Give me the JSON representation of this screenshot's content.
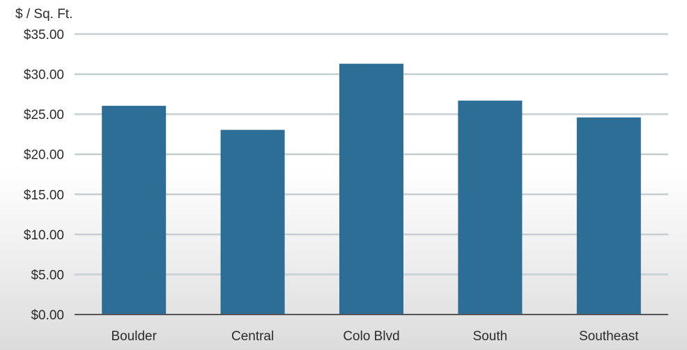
{
  "chart_data": {
    "type": "bar",
    "title": "",
    "xlabel": "",
    "ylabel": "$ / Sq. Ft.",
    "categories": [
      "Boulder",
      "Central",
      "Colo Blvd",
      "South",
      "Southeast"
    ],
    "values": [
      26.05,
      23.05,
      31.3,
      26.7,
      24.6
    ],
    "ylim": [
      0,
      35
    ],
    "yticks": [
      0,
      5,
      10,
      15,
      20,
      25,
      30,
      35
    ],
    "ytick_labels": [
      "$0.00",
      "$5.00",
      "$10.00",
      "$15.00",
      "$20.00",
      "$25.00",
      "$30.00",
      "$35.00"
    ],
    "grid": true,
    "legend": "none",
    "bar_color": "#2c6e96",
    "grid_color": "#c5cfd2",
    "axis_color": "#555555"
  }
}
